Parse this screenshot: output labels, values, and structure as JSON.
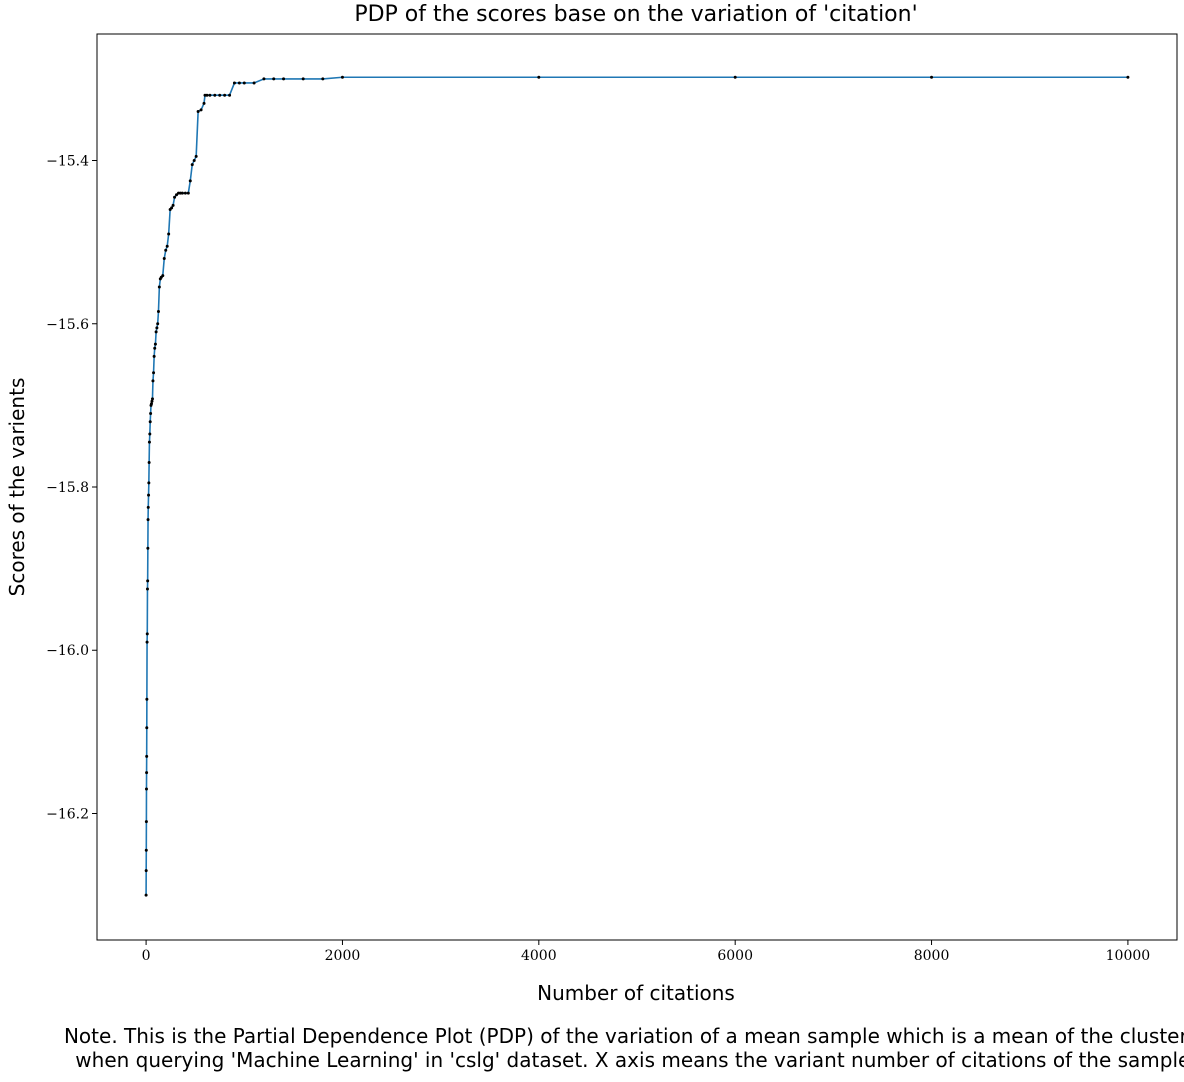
{
  "chart_data": {
    "type": "line",
    "title": "PDP of the scores base on the variation of 'citation'",
    "xlabel": "Number of citations",
    "ylabel": "Scores of the varients",
    "xlim": [
      -500,
      10500
    ],
    "ylim": [
      -16.355,
      -15.245
    ],
    "xticks": [
      0,
      2000,
      4000,
      6000,
      8000,
      10000
    ],
    "xtick_labels": [
      "0",
      "2000",
      "4000",
      "6000",
      "8000",
      "10000"
    ],
    "yticks": [
      -16.2,
      -16.0,
      -15.8,
      -15.6,
      -15.4
    ],
    "ytick_labels": [
      "−16.2",
      "−16.0",
      "−15.8",
      "−15.6",
      "−15.4"
    ],
    "grid": false,
    "line_color": "#1f77b4",
    "marker_color": "#000000",
    "series": [
      {
        "x": [
          0,
          1,
          2,
          3,
          4,
          5,
          6,
          7,
          8,
          10,
          12,
          14,
          16,
          18,
          20,
          22,
          25,
          28,
          31,
          34,
          38,
          42,
          46,
          50,
          55,
          60,
          65,
          70,
          76,
          82,
          88,
          95,
          102,
          110,
          118,
          126,
          135,
          145,
          155,
          170,
          185,
          200,
          215,
          230,
          245,
          260,
          275,
          290,
          310,
          330,
          350,
          370,
          400,
          430,
          450,
          470,
          490,
          510,
          530,
          560,
          590,
          600,
          620,
          650,
          700,
          750,
          800,
          850,
          900,
          950,
          1000,
          1100,
          1200,
          1300,
          1400,
          1600,
          1800,
          2000,
          4000,
          6000,
          8000,
          10000
        ],
        "y": [
          -16.3,
          -16.27,
          -16.245,
          -16.21,
          -16.17,
          -16.15,
          -16.13,
          -16.095,
          -16.06,
          -15.99,
          -15.98,
          -15.925,
          -15.915,
          -15.875,
          -15.84,
          -15.825,
          -15.81,
          -15.795,
          -15.77,
          -15.745,
          -15.735,
          -15.72,
          -15.71,
          -15.7,
          -15.698,
          -15.695,
          -15.692,
          -15.67,
          -15.66,
          -15.64,
          -15.63,
          -15.625,
          -15.61,
          -15.605,
          -15.6,
          -15.585,
          -15.555,
          -15.545,
          -15.543,
          -15.541,
          -15.52,
          -15.51,
          -15.505,
          -15.49,
          -15.46,
          -15.458,
          -15.455,
          -15.445,
          -15.442,
          -15.44,
          -15.44,
          -15.44,
          -15.44,
          -15.44,
          -15.425,
          -15.405,
          -15.4,
          -15.395,
          -15.34,
          -15.338,
          -15.33,
          -15.32,
          -15.32,
          -15.32,
          -15.32,
          -15.32,
          -15.32,
          -15.32,
          -15.305,
          -15.305,
          -15.305,
          -15.305,
          -15.3,
          -15.3,
          -15.3,
          -15.3,
          -15.3,
          -15.298,
          -15.298,
          -15.298,
          -15.298,
          -15.298
        ]
      }
    ]
  },
  "note": {
    "line1": "Note. This is the Partial Dependence Plot (PDP) of the variation of a mean sample which is a mean of the cluster C",
    "line2": "when querying 'Machine Learning' in 'cslg' dataset. X axis means the variant number of citations of the sample."
  }
}
